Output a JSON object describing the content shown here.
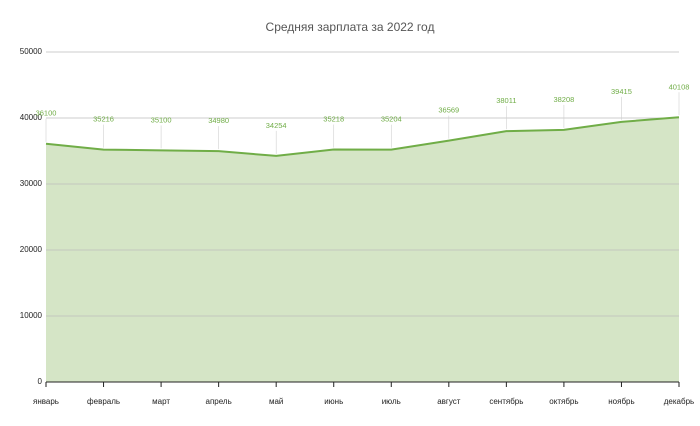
{
  "chart_data": {
    "type": "area",
    "title": "Средняя зарплата за 2022 год",
    "categories": [
      "январь",
      "февраль",
      "март",
      "апрель",
      "май",
      "июнь",
      "июль",
      "август",
      "сентябрь",
      "октябрь",
      "ноябрь",
      "декабрь"
    ],
    "values": [
      36100,
      35216,
      35100,
      34980,
      34254,
      35218,
      35204,
      36569,
      38011,
      38208,
      39415,
      40108
    ],
    "color": "#70ad47",
    "fill_color": "#d5e5c6",
    "ylim": [
      0,
      50000
    ],
    "yticks": [
      0,
      10000,
      20000,
      30000,
      40000,
      50000
    ],
    "grid": true
  }
}
